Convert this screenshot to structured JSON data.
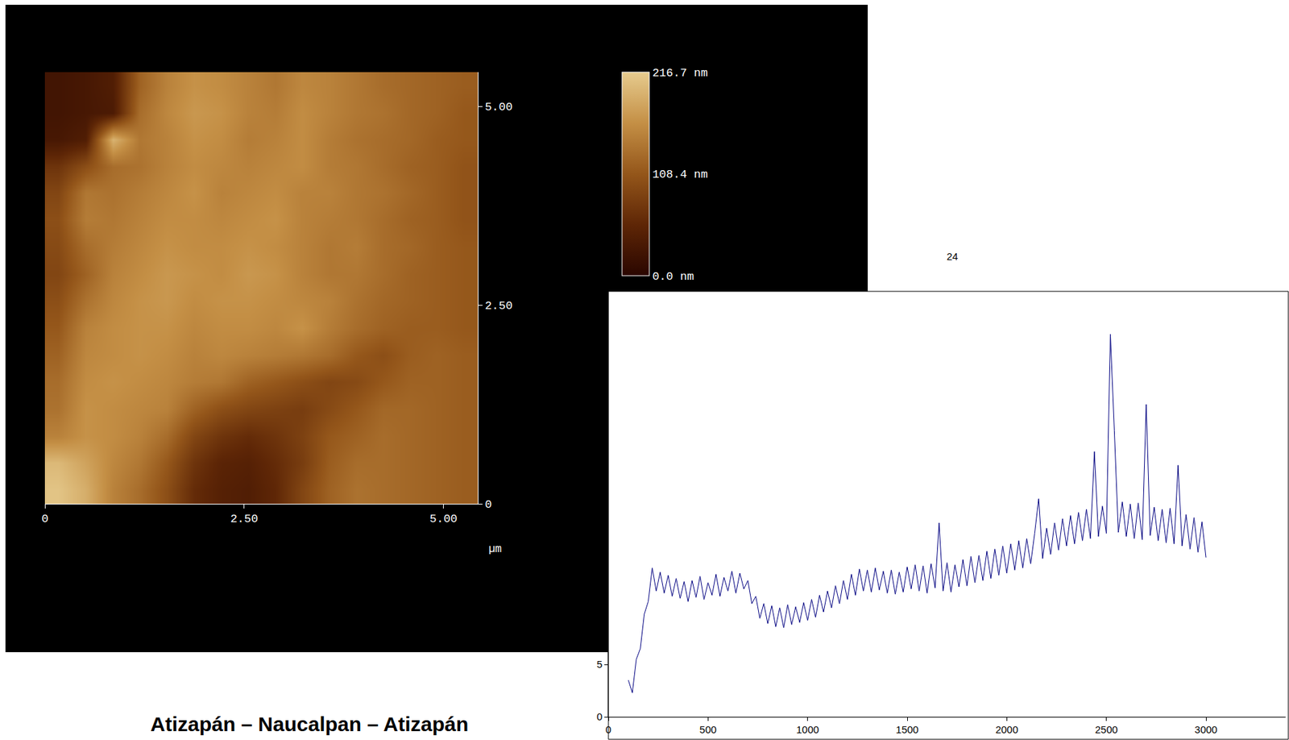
{
  "chart_data": [
    {
      "type": "heatmap",
      "xlabel": "µm",
      "x": [
        0.17,
        0.51,
        0.85,
        1.19,
        1.53,
        1.87,
        2.21,
        2.55,
        2.89,
        3.23,
        3.57,
        3.91,
        4.24,
        4.58,
        4.92,
        5.26
      ],
      "y": [
        0.17,
        0.51,
        0.85,
        1.19,
        1.53,
        1.87,
        2.21,
        2.55,
        2.89,
        3.23,
        3.57,
        3.91,
        4.24,
        4.58,
        4.92,
        5.26
      ],
      "z": [
        [
          210,
          190,
          150,
          130,
          100,
          60,
          45,
          40,
          55,
          90,
          120,
          135,
          130,
          125,
          120,
          115
        ],
        [
          200,
          180,
          155,
          140,
          110,
          70,
          50,
          45,
          60,
          80,
          115,
          130,
          130,
          125,
          120,
          115
        ],
        [
          150,
          165,
          160,
          150,
          130,
          90,
          70,
          60,
          70,
          85,
          110,
          120,
          130,
          125,
          120,
          115
        ],
        [
          135,
          165,
          160,
          155,
          150,
          120,
          100,
          90,
          85,
          80,
          95,
          110,
          125,
          125,
          120,
          115
        ],
        [
          130,
          160,
          165,
          160,
          155,
          145,
          140,
          120,
          110,
          100,
          90,
          95,
          110,
          120,
          120,
          115
        ],
        [
          120,
          155,
          160,
          165,
          160,
          150,
          155,
          150,
          145,
          140,
          130,
          110,
          100,
          115,
          120,
          115
        ],
        [
          110,
          150,
          160,
          165,
          165,
          155,
          160,
          160,
          155,
          165,
          145,
          130,
          120,
          115,
          115,
          110
        ],
        [
          100,
          135,
          155,
          165,
          170,
          160,
          165,
          165,
          160,
          155,
          150,
          135,
          125,
          120,
          115,
          110
        ],
        [
          90,
          120,
          150,
          160,
          170,
          165,
          160,
          170,
          165,
          150,
          140,
          140,
          130,
          120,
          115,
          110
        ],
        [
          95,
          130,
          145,
          155,
          165,
          160,
          160,
          165,
          160,
          150,
          140,
          145,
          130,
          125,
          115,
          110
        ],
        [
          100,
          145,
          140,
          150,
          160,
          160,
          155,
          160,
          165,
          150,
          145,
          140,
          130,
          120,
          115,
          105
        ],
        [
          90,
          140,
          135,
          145,
          155,
          165,
          150,
          155,
          160,
          150,
          150,
          140,
          135,
          125,
          115,
          105
        ],
        [
          70,
          100,
          130,
          135,
          150,
          160,
          155,
          150,
          155,
          160,
          145,
          140,
          130,
          120,
          115,
          105
        ],
        [
          30,
          40,
          195,
          140,
          150,
          165,
          160,
          145,
          150,
          160,
          145,
          135,
          130,
          125,
          115,
          110
        ],
        [
          25,
          30,
          35,
          130,
          155,
          170,
          165,
          150,
          145,
          160,
          150,
          140,
          135,
          125,
          120,
          110
        ],
        [
          25,
          30,
          40,
          120,
          150,
          165,
          160,
          150,
          140,
          155,
          150,
          140,
          130,
          125,
          120,
          115
        ]
      ],
      "xlim": [
        0,
        5.43
      ],
      "ylim": [
        0,
        5.43
      ],
      "xticks": [
        0,
        {
          "value": 2.5,
          "label": "2.50"
        },
        {
          "value": 5,
          "label": "5.00"
        }
      ],
      "yticks": [
        0,
        {
          "value": 2.5,
          "label": "2.50"
        },
        {
          "value": 5,
          "label": "5.00"
        }
      ],
      "colorbar_range": [
        0,
        216.7
      ],
      "colorbar_ticks": [
        {
          "value": 0,
          "label": "0.0 nm"
        },
        {
          "value": 108.4,
          "label": "108.4 nm"
        },
        {
          "value": 216.7,
          "label": "216.7 nm"
        }
      ]
    },
    {
      "type": "line",
      "x": [
        100,
        120,
        140,
        160,
        180,
        200,
        220,
        240,
        260,
        280,
        300,
        320,
        340,
        360,
        380,
        400,
        420,
        440,
        460,
        480,
        500,
        520,
        540,
        560,
        580,
        600,
        620,
        640,
        660,
        680,
        700,
        720,
        740,
        760,
        780,
        800,
        820,
        840,
        860,
        880,
        900,
        920,
        940,
        960,
        980,
        1000,
        1020,
        1040,
        1060,
        1080,
        1100,
        1120,
        1140,
        1160,
        1180,
        1200,
        1220,
        1240,
        1260,
        1280,
        1300,
        1320,
        1340,
        1360,
        1380,
        1400,
        1420,
        1440,
        1460,
        1480,
        1500,
        1520,
        1540,
        1560,
        1580,
        1600,
        1620,
        1640,
        1660,
        1680,
        1700,
        1720,
        1740,
        1760,
        1780,
        1800,
        1820,
        1840,
        1860,
        1880,
        1900,
        1920,
        1940,
        1960,
        1980,
        2000,
        2020,
        2040,
        2060,
        2080,
        2100,
        2120,
        2140,
        2160,
        2180,
        2200,
        2220,
        2240,
        2260,
        2280,
        2300,
        2320,
        2340,
        2360,
        2380,
        2400,
        2420,
        2440,
        2460,
        2480,
        2500,
        2520,
        2540,
        2560,
        2580,
        2600,
        2620,
        2640,
        2660,
        2680,
        2700,
        2720,
        2740,
        2760,
        2780,
        2800,
        2820,
        2840,
        2860,
        2880,
        2900,
        2920,
        2940,
        2960,
        2980,
        3000
      ],
      "values": [
        3.5,
        2.3,
        5.5,
        6.5,
        9.8,
        11,
        14.2,
        12,
        13.8,
        11.8,
        13.5,
        11.5,
        13.2,
        11.3,
        12.9,
        11,
        13,
        11.4,
        13.4,
        11.2,
        12.8,
        11.6,
        13.6,
        11.5,
        13.3,
        12,
        13.9,
        11.8,
        13.7,
        12.2,
        13,
        10.8,
        11.5,
        9.4,
        10.8,
        8.9,
        10.6,
        8.6,
        10.4,
        8.5,
        10.7,
        8.8,
        10.5,
        9,
        10.9,
        9.2,
        11.2,
        9.5,
        11.6,
        10,
        12,
        10.4,
        12.5,
        10.8,
        13,
        11.2,
        13.6,
        11.6,
        14.1,
        12,
        14,
        11.9,
        14.2,
        12.1,
        13.9,
        11.8,
        14,
        11.7,
        13.8,
        11.9,
        14.3,
        12.2,
        14.5,
        12,
        14.4,
        11.8,
        14.6,
        12.3,
        18.5,
        12,
        14.7,
        11.9,
        14.5,
        12.4,
        15,
        12.5,
        15.3,
        12.8,
        15.4,
        13,
        15.8,
        13.2,
        16,
        13.5,
        16.3,
        13.7,
        16.5,
        14,
        16.8,
        14.2,
        17,
        14.6,
        17.5,
        20.8,
        15.1,
        18,
        15.5,
        18.5,
        15.9,
        18.9,
        16.3,
        19.2,
        16.5,
        19.5,
        16.8,
        19.8,
        17,
        25.3,
        17.2,
        20.1,
        17.5,
        36.5,
        27.3,
        17.6,
        20.5,
        17.2,
        20.3,
        17,
        20.4,
        16.9,
        29.8,
        17.3,
        20,
        16.8,
        19.8,
        16.6,
        19.9,
        16.5,
        24,
        16.3,
        19.3,
        16,
        19,
        15.7,
        18.6,
        15.2
      ],
      "color": "#000080",
      "xlim": [
        0,
        3400
      ],
      "xticks": [
        0,
        500,
        1000,
        1500,
        2000,
        2500,
        3000
      ],
      "ylim": [
        0,
        40
      ],
      "yticks": [
        0,
        5
      ]
    }
  ],
  "page": {
    "page_number": "24",
    "caption": "Atizapán – Naucalpan – Atizapán"
  }
}
